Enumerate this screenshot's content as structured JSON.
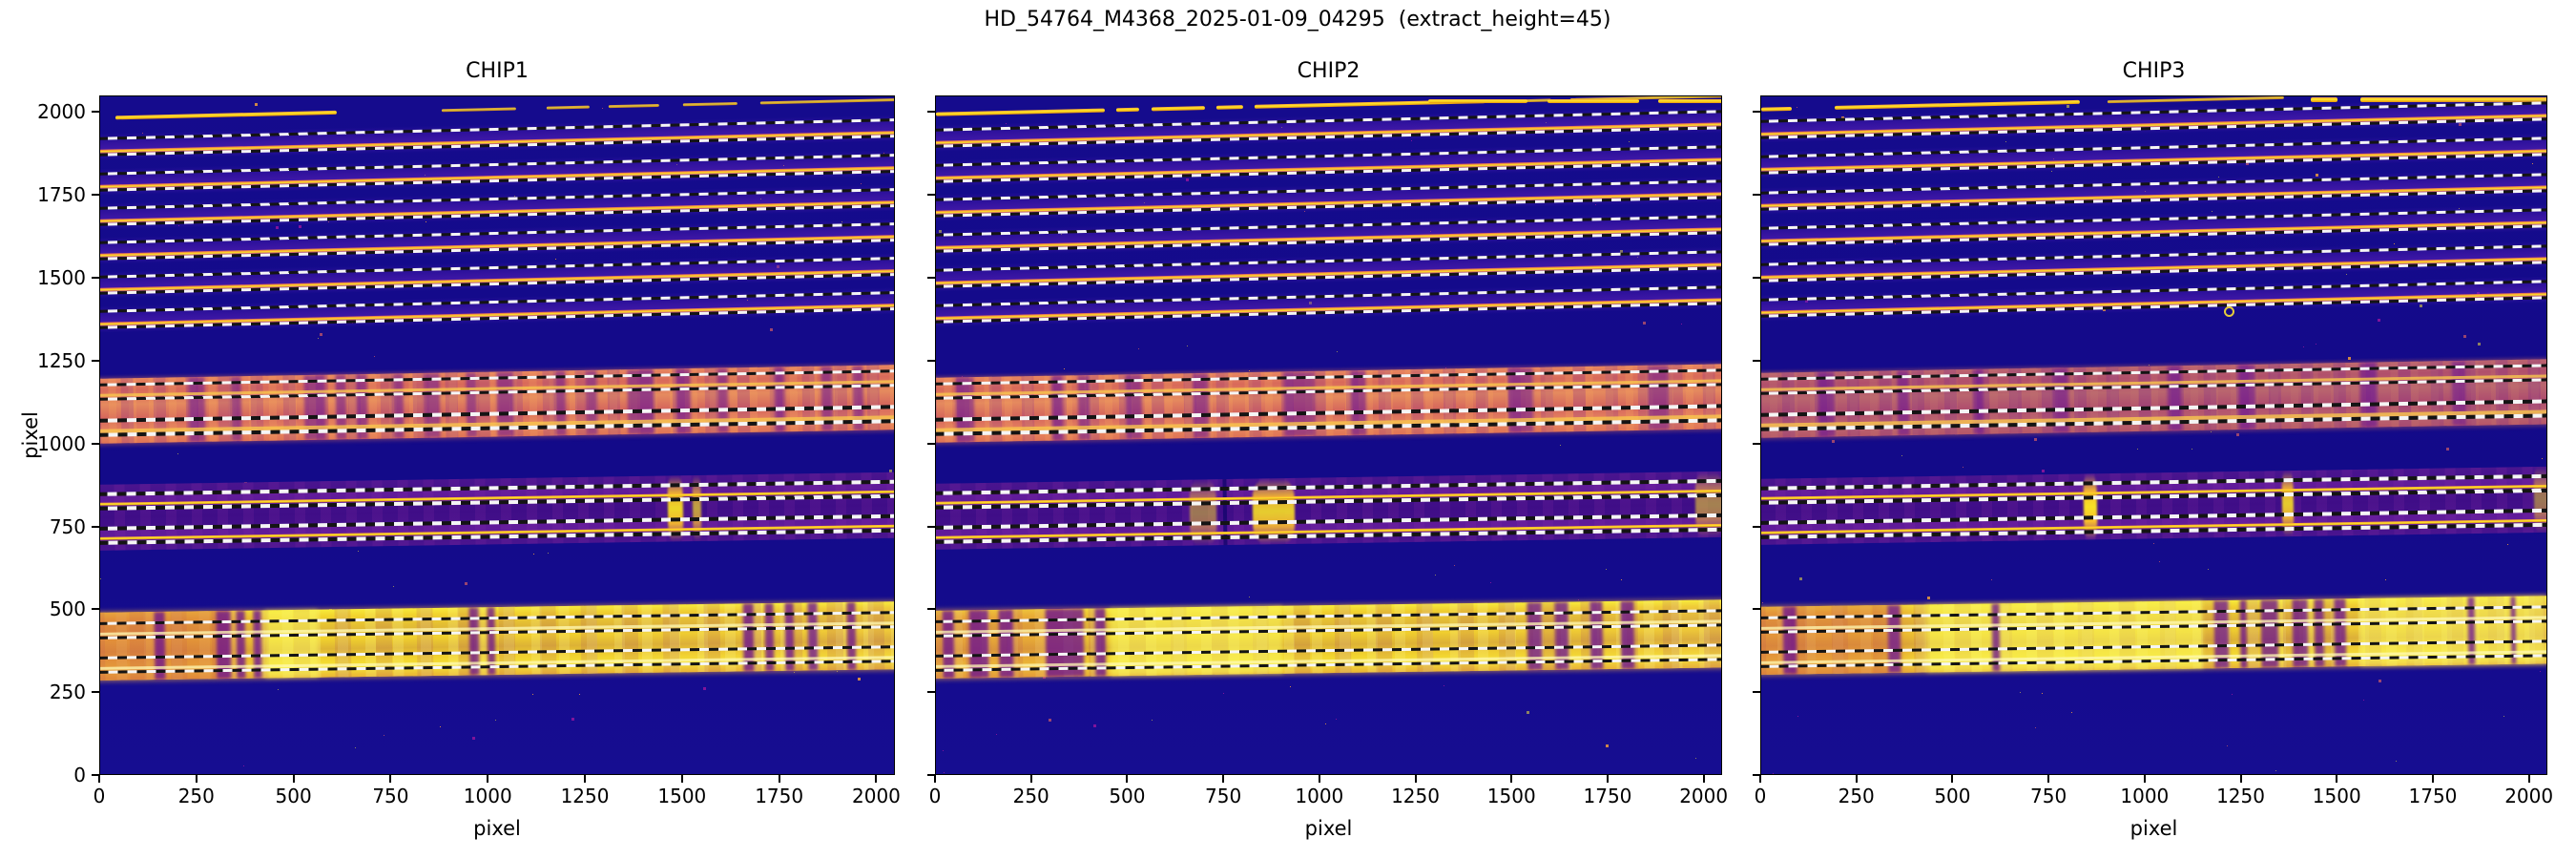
{
  "figure": {
    "suptitle": "HD_54764_M4368_2025-01-09_04295  (extract_height=45)",
    "background": "#ffffff"
  },
  "axes": {
    "xlabel": "pixel",
    "ylabel": "pixel",
    "x_ticks": [
      0,
      250,
      500,
      750,
      1000,
      1250,
      1500,
      1750,
      2000
    ],
    "y_ticks": [
      0,
      250,
      500,
      750,
      1000,
      1250,
      1500,
      1750,
      2000
    ],
    "x_max": 2048,
    "y_max": 2050
  },
  "chart_data": {
    "type": "heatmap",
    "description": "Three echelle spectrograph CCD frames (plasma colormap) with spectral order traces and dashed extraction-region boundaries (trace +/- 22.5 px).",
    "extract_height": 45,
    "colors": {
      "deep_blue_background": "#140b8c",
      "purple_band": "#45108f",
      "salmon_band": "#dd6f5b",
      "yellow_band": "#f2d42c",
      "orange": "#fca636",
      "trace_yellow": "#fde725",
      "absorption_purple": "#62068f",
      "dash_white": "#f5f5f5",
      "dash_black": "#141414"
    },
    "panels": [
      {
        "label": "CHIP1",
        "band_y_offset": 0,
        "top_orders": [
          1896,
          1792,
          1688,
          1584,
          1480,
          1376
        ],
        "stray_lines": [
          {
            "y": 1985,
            "tilt": true,
            "bright_to": 610,
            "segments": [
              [
                40,
                610
              ],
              [
                880,
                1070
              ],
              [
                1150,
                1260
              ],
              [
                1310,
                1440
              ],
              [
                1500,
                1640
              ],
              [
                1700,
                2048
              ]
            ]
          }
        ],
        "salmon_band": {
          "y0": 1000,
          "y1": 1197,
          "orders": [
            1160,
            1052
          ],
          "muted": false,
          "stripes": [
            [
              229,
              270
            ],
            [
              337,
              364
            ],
            [
              526,
              580
            ],
            [
              607,
              634
            ],
            [
              661,
              688
            ],
            [
              754,
              781
            ],
            [
              835,
              875
            ],
            [
              944,
              970
            ],
            [
              1022,
              1064
            ],
            [
              1172,
              1199
            ],
            [
              1253,
              1280
            ],
            [
              1359,
              1427
            ],
            [
              1482,
              1521
            ],
            [
              1590,
              1617
            ],
            [
              1737,
              1764
            ],
            [
              1857,
              1885
            ],
            [
              1938,
              1965
            ]
          ]
        },
        "purple_band": {
          "y0": 678,
          "y1": 877,
          "orders": [
            830,
            726
          ],
          "bright_streaks": [
            {
              "x": 1480,
              "w": 40,
              "a": 0.95
            },
            {
              "x": 1536,
              "w": 20,
              "a": 0.7
            }
          ],
          "dark_lines": []
        },
        "yellow_band": {
          "y0": 287,
          "y1": 492,
          "orders": [
            440,
            337
          ],
          "salmon_left_until": 420,
          "left_tint_alpha": 0.5,
          "left_stripes": [
            [
              140,
              168
            ],
            [
              300,
              336
            ],
            [
              352,
              374
            ],
            [
              396,
              416
            ]
          ],
          "stripes": [
            [
              950,
              976
            ],
            [
              996,
              1016
            ],
            [
              1656,
              1682
            ],
            [
              1712,
              1734
            ],
            [
              1762,
              1786
            ],
            [
              1822,
              1846
            ],
            [
              1922,
              1946
            ]
          ],
          "bright_cols": [
            [
              426,
              560
            ]
          ]
        },
        "marker_circles": []
      },
      {
        "label": "CHIP2",
        "band_y_offset": 5,
        "top_orders": [
          1924,
          1818,
          1712,
          1606,
          1500,
          1394
        ],
        "stray_lines": [
          {
            "y": 1995,
            "tilt": true,
            "bright_to": 1430,
            "segments": [
              [
                0,
                440
              ],
              [
                470,
                530
              ],
              [
                560,
                700
              ],
              [
                730,
                800
              ],
              [
                830,
                1430
              ],
              [
                1480,
                1600
              ],
              [
                1650,
                2048
              ]
            ]
          },
          {
            "y": 2036,
            "tilt": false,
            "bright_to": 2048,
            "segments": [
              [
                1280,
                1540
              ],
              [
                1590,
                1830
              ],
              [
                1880,
                2048
              ]
            ]
          }
        ],
        "salmon_band": {
          "y0": 1000,
          "y1": 1197,
          "orders": [
            1160,
            1052
          ],
          "muted": false,
          "stripes": [
            [
              52,
              100
            ],
            [
              300,
              330
            ],
            [
              370,
              400
            ],
            [
              495,
              535
            ],
            [
              670,
              710
            ],
            [
              905,
              985
            ],
            [
              1080,
              1120
            ],
            [
              1490,
              1555
            ],
            [
              1855,
              1910
            ]
          ]
        },
        "purple_band": {
          "y0": 678,
          "y1": 877,
          "orders": [
            830,
            726
          ],
          "bright_streaks": [
            {
              "x": 695,
              "w": 70,
              "a": 0.5
            },
            {
              "x": 878,
              "w": 110,
              "a": 0.9
            },
            {
              "x": 2012,
              "w": 70,
              "a": 0.55
            }
          ],
          "dark_lines": [
            [
              748,
              758
            ]
          ]
        },
        "yellow_band": {
          "y0": 287,
          "y1": 492,
          "orders": [
            440,
            337
          ],
          "salmon_left_until": 445,
          "left_tint_alpha": 0.28,
          "left_stripes": [
            [
              18,
              48
            ],
            [
              88,
              136
            ],
            [
              164,
              202
            ],
            [
              286,
              386
            ],
            [
              414,
              442
            ]
          ],
          "stripes": [
            [
              1540,
              1576
            ],
            [
              1610,
              1646
            ],
            [
              1702,
              1736
            ],
            [
              1782,
              1816
            ]
          ],
          "bright_cols": [
            [
              455,
              900
            ]
          ]
        },
        "marker_circles": []
      },
      {
        "label": "CHIP3",
        "band_y_offset": 18,
        "top_orders": [
          1950,
          1842,
          1734,
          1626,
          1518,
          1410
        ],
        "stray_lines": [
          {
            "y": 2010,
            "tilt": true,
            "bright_to": 830,
            "segments": [
              [
                0,
                80
              ],
              [
                190,
                830
              ],
              [
                900,
                1360
              ]
            ]
          },
          {
            "y": 2040,
            "tilt": false,
            "bright_to": 2048,
            "segments": [
              [
                1430,
                1500
              ],
              [
                1560,
                2048
              ]
            ]
          }
        ],
        "salmon_band": {
          "y0": 1000,
          "y1": 1197,
          "orders": [
            1160,
            1052
          ],
          "muted": true,
          "stripes": [
            [
              150,
              190
            ],
            [
              355,
              385
            ],
            [
              550,
              578
            ],
            [
              760,
              800
            ],
            [
              1058,
              1092
            ],
            [
              1244,
              1286
            ],
            [
              1558,
              1600
            ],
            [
              1798,
              1832
            ]
          ]
        },
        "purple_band": {
          "y0": 678,
          "y1": 877,
          "orders": [
            830,
            726
          ],
          "bright_streaks": [
            {
              "x": 856,
              "w": 36,
              "a": 1
            },
            {
              "x": 1370,
              "w": 30,
              "a": 0.9
            },
            {
              "x": 2030,
              "w": 36,
              "a": 0.5
            }
          ],
          "dark_lines": []
        },
        "yellow_band": {
          "y0": 287,
          "y1": 492,
          "orders": [
            440,
            337
          ],
          "salmon_left_until": 425,
          "left_tint_alpha": 0.45,
          "left_stripes": [
            [
              58,
              92
            ],
            [
              330,
              362
            ]
          ],
          "stripes": [
            [
              600,
              620
            ],
            [
              1180,
              1216
            ],
            [
              1246,
              1264
            ],
            [
              1300,
              1346
            ],
            [
              1382,
              1422
            ],
            [
              1440,
              1464
            ],
            [
              1492,
              1522
            ],
            [
              1840,
              1858
            ],
            [
              1950,
              1964
            ]
          ],
          "bright_cols": [
            [
              430,
              1150
            ],
            [
              1560,
              2040
            ]
          ]
        },
        "marker_circles": [
          {
            "x": 1220,
            "y": 1400
          }
        ]
      }
    ]
  }
}
